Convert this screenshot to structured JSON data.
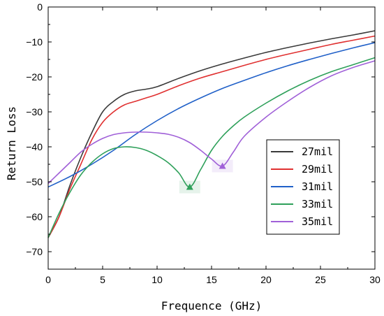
{
  "chart_data": {
    "type": "line",
    "title": "",
    "xlabel": "Frequence (GHz)",
    "ylabel": "Return Loss",
    "xlim": [
      0,
      30
    ],
    "ylim": [
      -75,
      0
    ],
    "xticks": [
      0,
      5,
      10,
      15,
      20,
      25,
      30
    ],
    "yticks": [
      0,
      -10,
      -20,
      -30,
      -40,
      -50,
      -60,
      -70
    ],
    "grid": false,
    "legend_position": "right-center",
    "series": [
      {
        "name": "27mil",
        "color": "#3a3a3a",
        "x": [
          0,
          1,
          2,
          3,
          4,
          5,
          6,
          7,
          8,
          9,
          10,
          12,
          14,
          16,
          18,
          20,
          22,
          24,
          26,
          28,
          30
        ],
        "y": [
          -66,
          -60,
          -51,
          -43,
          -36,
          -30,
          -27,
          -25,
          -24,
          -23.5,
          -22.8,
          -20.4,
          -18.2,
          -16.3,
          -14.6,
          -13.0,
          -11.6,
          -10.3,
          -9.1,
          -8.0,
          -6.8
        ]
      },
      {
        "name": "29mil",
        "color": "#e03030",
        "x": [
          0,
          1,
          2,
          3,
          4,
          5,
          6,
          7,
          8,
          9,
          10,
          12,
          14,
          16,
          18,
          20,
          22,
          24,
          26,
          28,
          30
        ],
        "y": [
          -66,
          -60,
          -52,
          -45,
          -38,
          -33,
          -30,
          -28,
          -27,
          -26,
          -25,
          -22.5,
          -20.3,
          -18.5,
          -16.7,
          -15.0,
          -13.5,
          -12.1,
          -10.7,
          -9.5,
          -8.3
        ]
      },
      {
        "name": "31mil",
        "color": "#2060c8",
        "x": [
          0,
          2,
          4,
          6,
          8,
          10,
          12,
          14,
          16,
          18,
          20,
          22,
          24,
          26,
          28,
          30
        ],
        "y": [
          -51.5,
          -48.5,
          -45,
          -41,
          -36.5,
          -32.5,
          -29,
          -26,
          -23.3,
          -21,
          -18.8,
          -16.8,
          -15,
          -13.3,
          -11.7,
          -10.2
        ]
      },
      {
        "name": "33mil",
        "color": "#2ea05a",
        "x": [
          0,
          1,
          2,
          3,
          4,
          5,
          6,
          7,
          8,
          9,
          10,
          11,
          12,
          13,
          14,
          15,
          16,
          17,
          18,
          20,
          22,
          24,
          26,
          28,
          30
        ],
        "y": [
          -66,
          -59,
          -53,
          -48,
          -44.5,
          -42,
          -40.5,
          -40,
          -40.2,
          -41,
          -42.5,
          -44.5,
          -47.5,
          -51.5,
          -46.5,
          -41,
          -37,
          -34,
          -31.5,
          -27.5,
          -24,
          -21,
          -18.5,
          -16.5,
          -14.5
        ]
      },
      {
        "name": "35mil",
        "color": "#a060d8",
        "x": [
          0,
          1,
          2,
          3,
          4,
          5,
          6,
          7,
          8,
          9,
          10,
          11,
          12,
          13,
          14,
          15,
          16,
          17,
          18,
          20,
          22,
          24,
          26,
          28,
          30
        ],
        "y": [
          -50.5,
          -47.5,
          -44.5,
          -41.5,
          -39.3,
          -37.6,
          -36.5,
          -36,
          -35.8,
          -35.8,
          -36,
          -36.4,
          -37.3,
          -38.8,
          -41,
          -43.5,
          -45.5,
          -41.5,
          -37,
          -31.5,
          -27,
          -23,
          -19.7,
          -17.3,
          -15.4
        ]
      }
    ],
    "markers": [
      {
        "series": "33mil",
        "x": 13,
        "y": -51.5,
        "shape": "triangle"
      },
      {
        "series": "35mil",
        "x": 16,
        "y": -45.5,
        "shape": "triangle"
      }
    ]
  }
}
